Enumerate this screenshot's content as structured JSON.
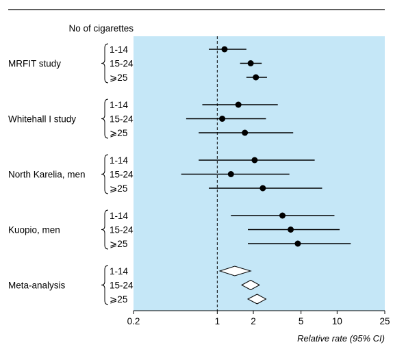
{
  "chart_data": {
    "type": "forest",
    "column_header": "No of cigarettes",
    "xlabel": "Relative rate (95% CI)",
    "x_scale": "log",
    "xlim": [
      0.2,
      25
    ],
    "x_ticks": [
      {
        "value": 0.2,
        "label": "0.2"
      },
      {
        "value": 1,
        "label": "1"
      },
      {
        "value": 2,
        "label": "2"
      },
      {
        "value": 5,
        "label": "5"
      },
      {
        "value": 10,
        "label": "10"
      },
      {
        "value": 25,
        "label": "25"
      }
    ],
    "reference_line": 1,
    "panel_color": "#c5e7f7",
    "groups": [
      {
        "name": "MRFIT study",
        "marker": "point",
        "rows": [
          {
            "label": "1-14",
            "estimate": 1.15,
            "lower": 0.85,
            "upper": 1.75
          },
          {
            "label": "15-24",
            "estimate": 1.9,
            "lower": 1.55,
            "upper": 2.35
          },
          {
            "label": "⩾25",
            "estimate": 2.1,
            "lower": 1.75,
            "upper": 2.6
          }
        ]
      },
      {
        "name": "Whitehall I study",
        "marker": "point",
        "rows": [
          {
            "label": "1-14",
            "estimate": 1.5,
            "lower": 0.75,
            "upper": 3.2
          },
          {
            "label": "15-24",
            "estimate": 1.1,
            "lower": 0.55,
            "upper": 2.55
          },
          {
            "label": "⩾25",
            "estimate": 1.7,
            "lower": 0.7,
            "upper": 4.3
          }
        ]
      },
      {
        "name": "North Karelia, men",
        "marker": "point",
        "rows": [
          {
            "label": "1-14",
            "estimate": 2.05,
            "lower": 0.7,
            "upper": 6.5
          },
          {
            "label": "15-24",
            "estimate": 1.3,
            "lower": 0.5,
            "upper": 4.0
          },
          {
            "label": "⩾25",
            "estimate": 2.4,
            "lower": 0.85,
            "upper": 7.5
          }
        ]
      },
      {
        "name": "Kuopio, men",
        "marker": "point",
        "rows": [
          {
            "label": "1-14",
            "estimate": 3.5,
            "lower": 1.3,
            "upper": 9.5
          },
          {
            "label": "15-24",
            "estimate": 4.1,
            "lower": 1.8,
            "upper": 10.5
          },
          {
            "label": "⩾25",
            "estimate": 4.7,
            "lower": 1.8,
            "upper": 13.0
          }
        ]
      },
      {
        "name": "Meta-analysis",
        "marker": "diamond",
        "rows": [
          {
            "label": "1-14",
            "estimate": 1.4,
            "lower": 1.05,
            "upper": 1.9
          },
          {
            "label": "15-24",
            "estimate": 1.9,
            "lower": 1.6,
            "upper": 2.25
          },
          {
            "label": "⩾25",
            "estimate": 2.15,
            "lower": 1.8,
            "upper": 2.55
          }
        ]
      }
    ]
  }
}
